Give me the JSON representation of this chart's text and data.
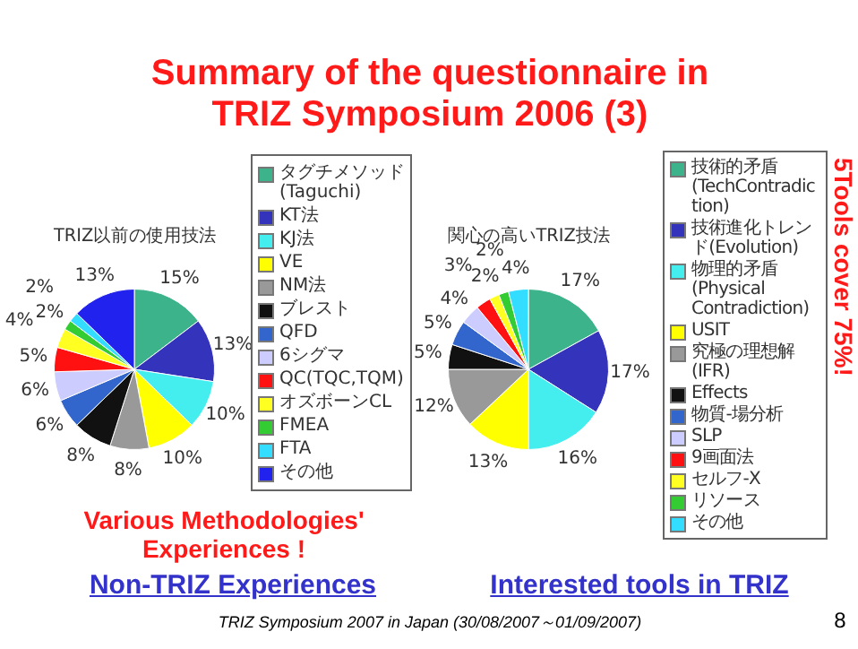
{
  "chart_data": [
    {
      "type": "pie",
      "title": "TRIZ以前の使用技法",
      "categories": [
        "タグチメソッド(Taguchi)",
        "KT法",
        "KJ法",
        "VE",
        "NM法",
        "ブレスト",
        "QFD",
        "6シグマ",
        "QC(TQC,TQM)",
        "オズボーンCL",
        "FMEA",
        "FTA",
        "その他"
      ],
      "values": [
        15,
        13,
        10,
        10,
        8,
        8,
        6,
        6,
        5,
        4,
        2,
        2,
        13
      ],
      "value_labels": [
        "15%",
        "13%",
        "10%",
        "10%",
        "8%",
        "8%",
        "6%",
        "6%",
        "5%",
        "4%",
        "2%",
        "2%",
        "13%"
      ],
      "colors": [
        "#3cb38a",
        "#3333bb",
        "#44eeee",
        "#ffff00",
        "#999999",
        "#111111",
        "#3366cc",
        "#ccccff",
        "#ff1111",
        "#ffff22",
        "#33cc33",
        "#33ddff",
        "#2222ee"
      ],
      "legend": "right",
      "annotations": [
        "Summary of the questionnaire in TRIZ Symposium 2006 (3)",
        "Various Methodologies' Experiences !",
        "Non-TRIZ Experiences"
      ]
    },
    {
      "type": "pie",
      "title": "関心の高いTRIZ技法",
      "categories": [
        "技術的矛盾(TechContradiction)",
        "技術進化トレンド(Evolution)",
        "物理的矛盾(Physical Contradiction)",
        "USIT",
        "究極の理想解(IFR)",
        "Effects",
        "物質-場分析",
        "SLP",
        "9画面法",
        "セルフ-X",
        "リソース",
        "その他"
      ],
      "values": [
        17,
        17,
        16,
        13,
        12,
        5,
        5,
        4,
        3,
        2,
        2,
        4
      ],
      "value_labels": [
        "17%",
        "17%",
        "16%",
        "13%",
        "12%",
        "5%",
        "5%",
        "4%",
        "3%",
        "2%",
        "2%",
        "4%"
      ],
      "colors": [
        "#3cb38a",
        "#3333bb",
        "#44eeee",
        "#ffff00",
        "#999999",
        "#111111",
        "#3366cc",
        "#ccccff",
        "#ff1111",
        "#ffff22",
        "#33cc33",
        "#33ddff"
      ],
      "legend": "right",
      "annotations": [
        "5Tools cover 75%!",
        "Interested tools in TRIZ",
        "TRIZ Symposium 2007 in Japan (30/08/2007～01/09/2007)",
        "8"
      ]
    }
  ]
}
